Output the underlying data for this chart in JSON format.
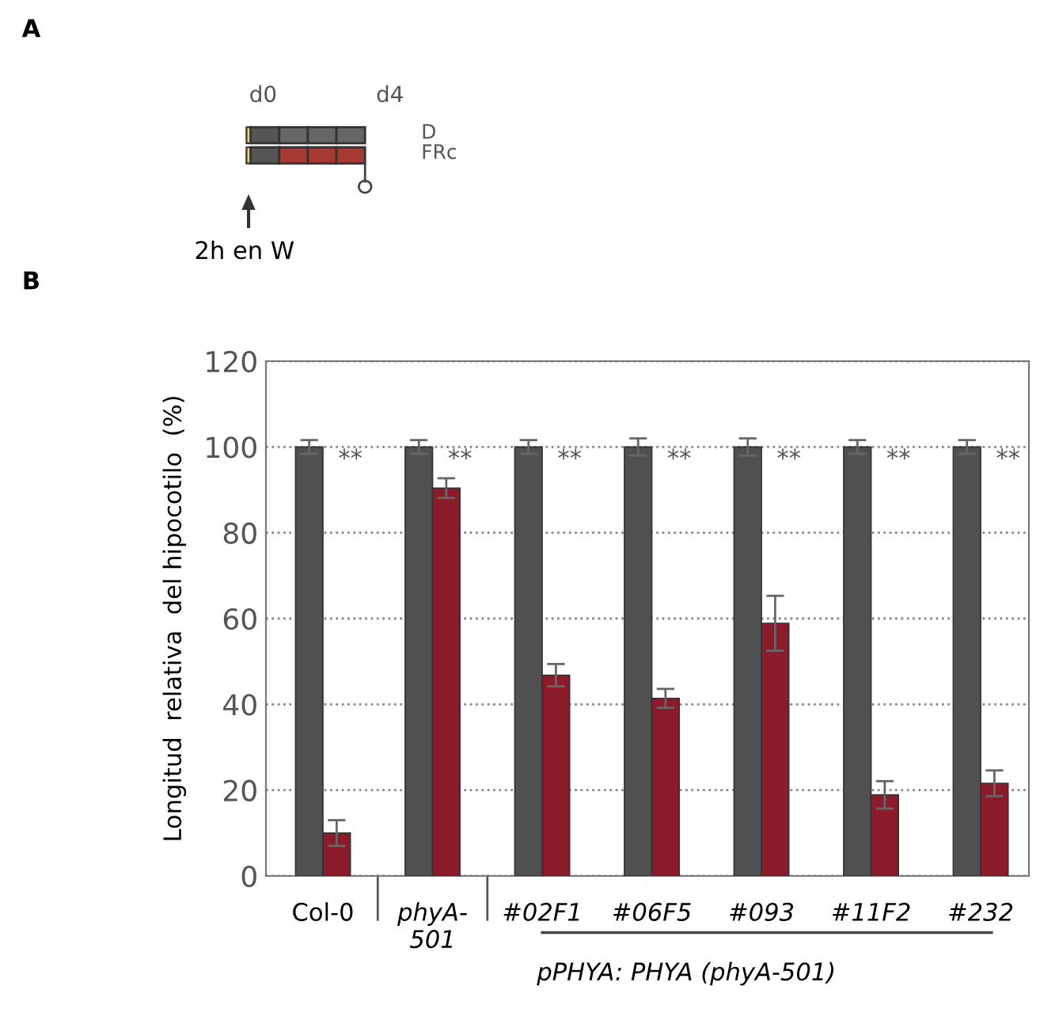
{
  "chart_data": {
    "type": "bar",
    "ylabel": "Longitud  relativa  del hipocotilo  (%)",
    "categories": [
      "Col-0",
      "phyA-\n501",
      "#02F1",
      "#06F5",
      "#093",
      "#11F2",
      "#232"
    ],
    "series": [
      {
        "color": "#505050",
        "values": [
          100,
          100,
          100,
          100,
          100,
          100,
          100
        ],
        "errors": [
          1.6,
          1.6,
          1.6,
          2,
          2,
          1.6,
          1.6
        ]
      },
      {
        "color": "#8b1a2b",
        "values": [
          10,
          90.4,
          46.8,
          41.4,
          58.9,
          18.9,
          21.6
        ],
        "errors": [
          3,
          2.3,
          2.6,
          2.2,
          6.4,
          3.2,
          3
        ]
      }
    ],
    "ylim": [
      0,
      120
    ],
    "yticks": [
      0,
      20,
      40,
      60,
      80,
      100,
      120
    ],
    "grid": "y",
    "annotations": [
      {
        "text": "**",
        "x": "Col-0",
        "y": 97
      },
      {
        "text": "**",
        "x": "phyA-\n501",
        "y": 97
      },
      {
        "text": "**",
        "x": "#02F1",
        "y": 97
      },
      {
        "text": "**",
        "x": "#06F5",
        "y": 97
      },
      {
        "text": "**",
        "x": "#093",
        "y": 97
      },
      {
        "text": "**",
        "x": "#11F2",
        "y": 97
      },
      {
        "text": "**",
        "x": "#232",
        "y": 97
      },
      "pPHYA: PHYA (phyA-501)",
      "A",
      "B",
      "d0",
      "d4",
      "D",
      "FRc",
      "2h en W"
    ]
  }
}
